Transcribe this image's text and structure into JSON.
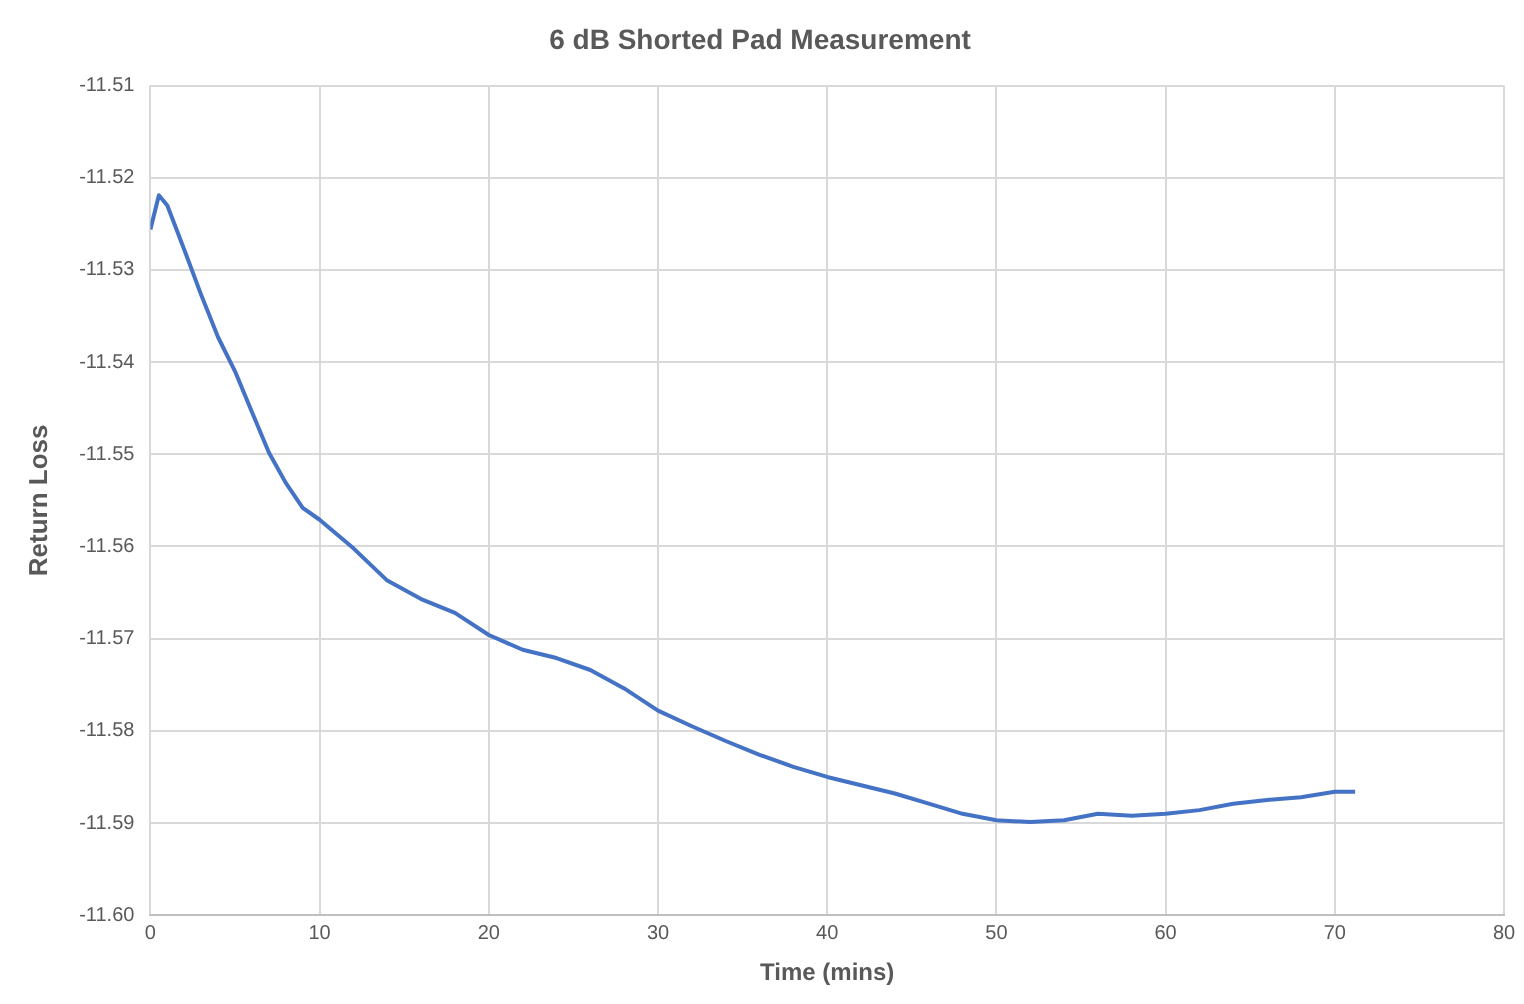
{
  "chart_data": {
    "type": "line",
    "title": "6 dB Shorted Pad Measurement",
    "xlabel": "Time (mins)",
    "ylabel": "Return Loss",
    "x": [
      0,
      0.5,
      1,
      2,
      3,
      4,
      5,
      6,
      7,
      8,
      9,
      10,
      12,
      14,
      16,
      18,
      20,
      22,
      24,
      26,
      28,
      30,
      32,
      34,
      36,
      38,
      40,
      42,
      44,
      46,
      48,
      50,
      52,
      54,
      56,
      58,
      60,
      62,
      64,
      66,
      68,
      70,
      71.2
    ],
    "series": [
      {
        "color": "#4472c4",
        "values": [
          -11.5256,
          -11.5219,
          -11.523,
          -11.5278,
          -11.5327,
          -11.5373,
          -11.541,
          -11.5454,
          -11.5498,
          -11.5531,
          -11.5558,
          -11.5571,
          -11.5602,
          -11.5637,
          -11.5657,
          -11.5672,
          -11.5696,
          -11.5712,
          -11.5721,
          -11.5734,
          -11.5754,
          -11.5778,
          -11.5795,
          -11.5811,
          -11.5826,
          -11.5839,
          -11.585,
          -11.5859,
          -11.5868,
          -11.5879,
          -11.589,
          -11.5897,
          -11.5899,
          -11.5897,
          -11.589,
          -11.5892,
          -11.589,
          -11.5886,
          -11.5879,
          -11.5875,
          -11.5872,
          -11.5866,
          -11.5866
        ]
      }
    ],
    "xlim": [
      0,
      80
    ],
    "xticks": [
      0,
      10,
      20,
      30,
      40,
      50,
      60,
      70,
      80
    ],
    "ylim": [
      -11.6,
      -11.51
    ],
    "yticks": [
      {
        "value": -11.6,
        "label": "-11.60"
      },
      -11.59,
      -11.58,
      -11.57,
      -11.56,
      -11.55,
      -11.54,
      -11.53,
      -11.52,
      -11.51
    ],
    "grid": true,
    "legend": false,
    "marker": "none",
    "line_style": "solid"
  }
}
